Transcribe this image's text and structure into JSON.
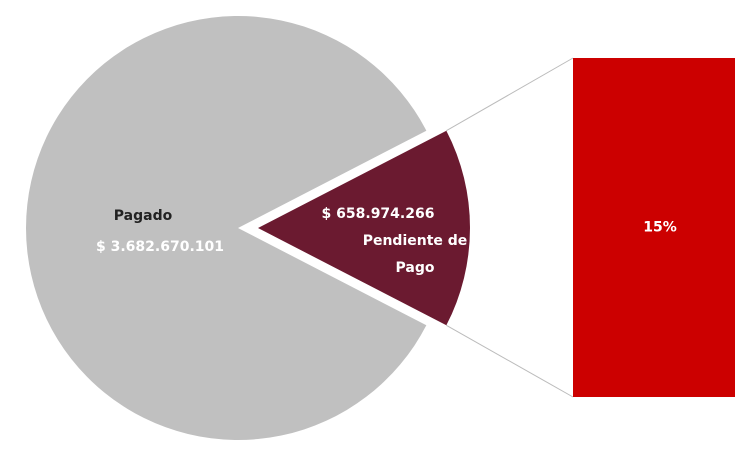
{
  "chart_data": {
    "type": "pie-of-bar",
    "categories": [
      "Pagado",
      "Pendiente de Pago"
    ],
    "values": [
      3682670101,
      658974266
    ],
    "value_labels": [
      "$ 3.682.670.101",
      "$ 658.974.266"
    ],
    "colors": [
      "#c0c0c0",
      "#6b1a30"
    ],
    "secondary": {
      "values": [
        15
      ],
      "value_labels": [
        "15%"
      ],
      "color": "#cc0000"
    }
  }
}
